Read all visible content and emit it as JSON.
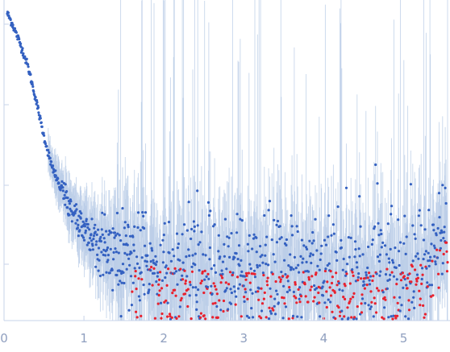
{
  "chart_data": {
    "type": "scatter",
    "title": "",
    "xlabel": "",
    "ylabel": "",
    "xlim": [
      0,
      5.55
    ],
    "x_ticks": [
      "0",
      "1",
      "2",
      "3",
      "4",
      "5"
    ],
    "x_tick_values": [
      0,
      1,
      2,
      3,
      4,
      5
    ],
    "grid": false,
    "legend": "none",
    "colors": {
      "points": "#3461c1",
      "negative_points": "#e8212e",
      "error_bars": "#b6c9e6",
      "axis": "#c7d3ea",
      "tick_label": "#8f9fbf"
    },
    "series": [
      {
        "values_description_x": [
          0.04,
          0.1,
          0.2,
          0.3,
          0.4,
          0.5,
          0.6,
          0.7,
          0.8,
          0.9,
          1.0,
          1.1,
          1.2,
          1.3,
          1.5,
          1.7,
          2.0,
          2.5,
          3.0,
          3.5,
          4.0,
          4.5,
          5.0,
          5.3,
          5.5
        ],
        "y": [
          5.0,
          4.85,
          4.55,
          4.2,
          3.7,
          3.15,
          2.7,
          2.4,
          2.15,
          1.95,
          1.8,
          1.65,
          1.55,
          1.45,
          1.35,
          1.3,
          1.25,
          1.2,
          1.2,
          1.18,
          1.2,
          1.22,
          1.25,
          1.35,
          1.7
        ]
      }
    ]
  }
}
